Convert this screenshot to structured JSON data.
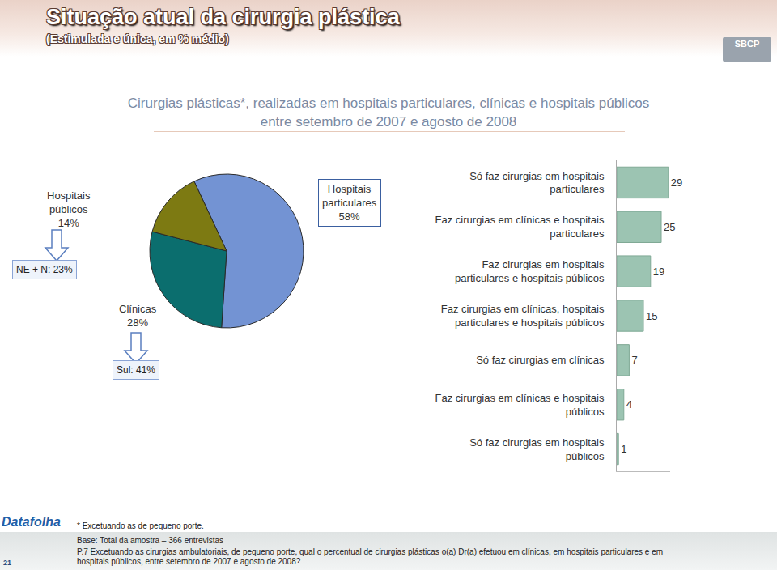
{
  "header": {
    "title": "Situação atual da cirurgia plástica",
    "subtitle": "(Estimulada e única, em % médio)",
    "logo": "SBCP",
    "chart_title": "Cirurgias plásticas*, realizadas em hospitais particulares, clínicas e hospitais públicos entre setembro de 2007 e agosto de 2008"
  },
  "chart_data": [
    {
      "type": "pie",
      "categories": [
        "Hospitais particulares",
        "Clínicas",
        "Hospitais públicos"
      ],
      "values": [
        58,
        28,
        14
      ],
      "value_labels": [
        "58%",
        "28%",
        "14%"
      ],
      "colors": [
        "#7393d3",
        "#0b6e6e",
        "#7d7a12"
      ],
      "data_labels": true,
      "annotations": [
        {
          "text": "NE + N: 23%",
          "category": "Hospitais públicos"
        },
        {
          "text": "Sul: 41%",
          "category": "Clínicas"
        }
      ]
    },
    {
      "type": "bar",
      "orientation": "horizontal",
      "categories": [
        "Só faz cirurgias em hospitais particulares",
        "Faz cirurgias em clínicas e hospitais particulares",
        "Faz cirurgias em hospitais particulares e hospitais públicos",
        "Faz cirurgias em clínicas, hospitais particulares e hospitais públicos",
        "Só faz cirurgias em clínicas",
        "Faz cirurgias em clínicas e hospitais públicos",
        "Só faz cirurgias em hospitais públicos"
      ],
      "values": [
        29,
        25,
        19,
        15,
        7,
        4,
        1
      ],
      "color": "#9cc4b2",
      "xlim": [
        0,
        30
      ],
      "tick_labels": "y",
      "data_labels": true
    }
  ],
  "footer": {
    "note": "* Excetuando as de pequeno porte.",
    "base": "Base: Total da amostra – 366 entrevistas",
    "question": "P.7 Excetuando as cirurgias ambulatoriais, de pequeno porte, qual o percentual de cirurgias plásticas o(a) Dr(a) efetuou em clínicas, em hospitais particulares e em hospitais públicos, entre setembro de 2007 e agosto de 2008?",
    "page": "21",
    "source": "Datafolha"
  }
}
